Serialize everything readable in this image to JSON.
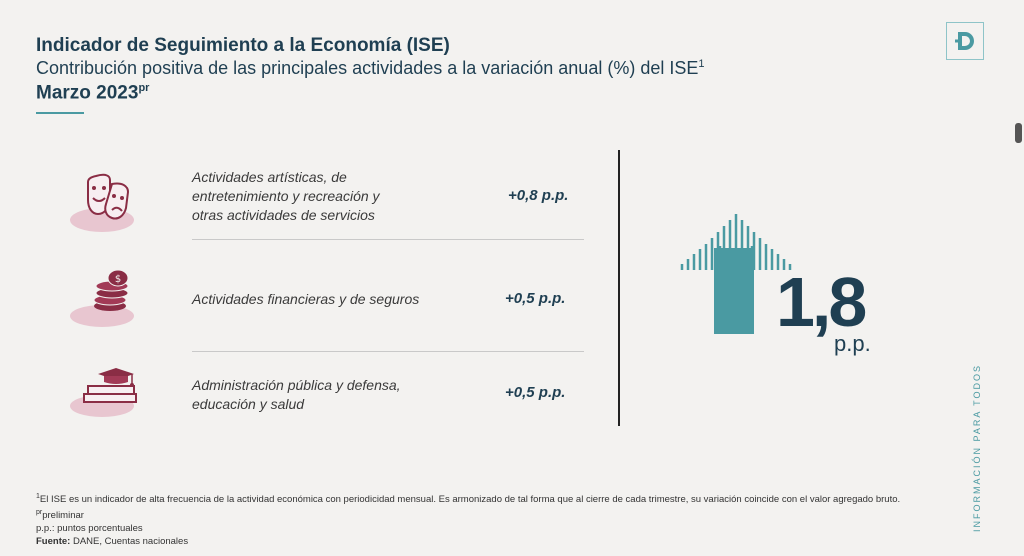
{
  "header": {
    "title": "Indicador de Seguimiento a la Economía (ISE)",
    "subtitle": "Contribución positiva de las principales actividades a la variación anual (%) del ISE",
    "subtitle_sup": "1",
    "date": "Marzo 2023",
    "date_sup": "pr"
  },
  "logo": {
    "letter": "D",
    "icon": "dane-logo-icon"
  },
  "rows": [
    {
      "icon": "theater-masks-icon",
      "label_lines": [
        "Actividades artísticas, de",
        "entretenimiento y recreación y",
        "otras actividades de servicios"
      ],
      "value": "+0,8 p.p."
    },
    {
      "icon": "coins-stack-icon",
      "label_lines": [
        "Actividades financieras y de seguros"
      ],
      "value": "+0,5 p.p."
    },
    {
      "icon": "books-graduation-cap-icon",
      "label_lines": [
        "Administración pública y defensa,",
        "educación y salud"
      ],
      "value": "+0,5 p.p."
    }
  ],
  "total": {
    "value": "1,8",
    "unit": "p.p.",
    "icon": "up-arrow-icon"
  },
  "side_text": "INFORMACIÓN PARA TODOS",
  "footnotes": {
    "note1_sup": "1",
    "note1": "El  ISE es un indicador de alta frecuencia de la actividad económica con periodicidad mensual. Es armonizado de tal forma que al cierre de cada trimestre, su variación coincide con el valor agregado bruto.",
    "note2_sup": "pr",
    "note2": "preliminar",
    "note3": "p.p.: puntos porcentuales",
    "source_label": "Fuente:",
    "source": " DANE, Cuentas nacionales"
  },
  "colors": {
    "navy": "#1f3f52",
    "teal": "#4a9aa2",
    "maroon": "#8a2d45",
    "pink": "#e8c6d0"
  }
}
